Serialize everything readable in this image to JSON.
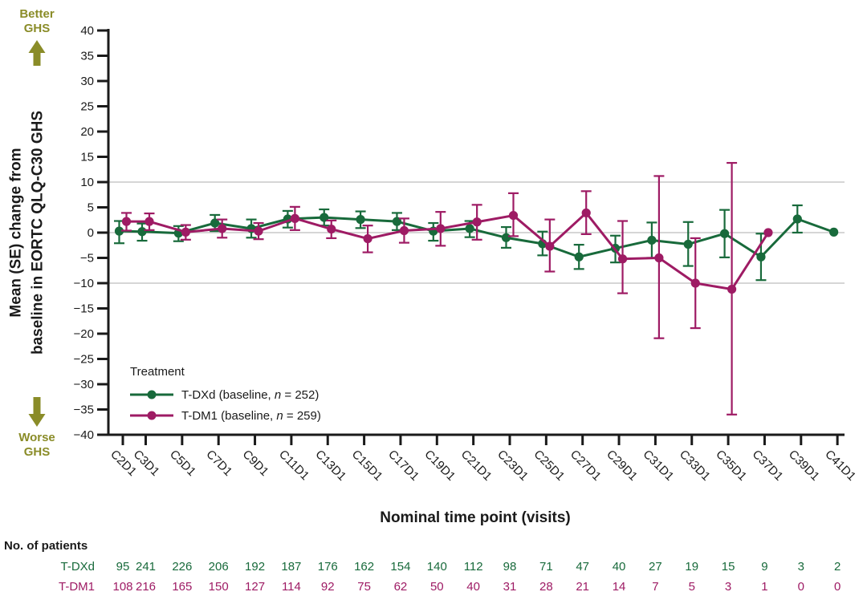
{
  "colors": {
    "tdxd": "#186a3b",
    "tdm1": "#9e1b64",
    "olive": "#8a8c28",
    "text": "#1a1a1a",
    "grid": "#c9c9c9"
  },
  "better_ghs": {
    "line1": "Better",
    "line2": "GHS"
  },
  "worse_ghs": {
    "line1": "Worse",
    "line2": "GHS"
  },
  "y_axis": {
    "title_line1": "Mean (SE) change from",
    "title_line2": "baseline in EORTC QLQ-C30 GHS"
  },
  "x_axis": {
    "title": "Nominal time point (visits)"
  },
  "legend": {
    "title": "Treatment",
    "entries": [
      {
        "prefix": "T-DXd (baseline, ",
        "n_symbol": "n",
        "suffix": " = 252)"
      },
      {
        "prefix": "T-DM1 (baseline, ",
        "n_symbol": "n",
        "suffix": " = 259)"
      }
    ]
  },
  "patients": {
    "title": "No. of patients",
    "rows": [
      {
        "label": "T-DXd",
        "values": [
          95,
          241,
          226,
          206,
          192,
          187,
          176,
          162,
          154,
          140,
          112,
          98,
          71,
          47,
          40,
          27,
          19,
          15,
          9,
          3,
          2
        ]
      },
      {
        "label": "T-DM1",
        "values": [
          108,
          216,
          165,
          150,
          127,
          114,
          92,
          75,
          62,
          50,
          40,
          31,
          28,
          21,
          14,
          7,
          5,
          3,
          1,
          0,
          0
        ]
      }
    ]
  },
  "chart_data": {
    "type": "line",
    "title": "",
    "xlabel": "Nominal time point (visits)",
    "ylabel": "Mean (SE) change from baseline in EORTC QLQ-C30 GHS",
    "error_bar_type": "SE",
    "categories": [
      "C2D1",
      "C3D1",
      "C5D1",
      "C7D1",
      "C9D1",
      "C11D1",
      "C13D1",
      "C15D1",
      "C17D1",
      "C19D1",
      "C21D1",
      "C23D1",
      "C25D1",
      "C27D1",
      "C29D1",
      "C31D1",
      "C33D1",
      "C35D1",
      "C37D1",
      "C39D1",
      "C41D1"
    ],
    "ylim": [
      -40,
      40
    ],
    "ytick_step": 5,
    "reference_lines": [
      10,
      0,
      -10
    ],
    "legend_position": "inside lower-left",
    "series": [
      {
        "name": "T-DXd (baseline, n = 252)",
        "color": "#186a3b",
        "values": [
          0.3,
          0.2,
          -0.1,
          1.9,
          0.8,
          2.7,
          3.0,
          2.6,
          2.2,
          0.3,
          0.8,
          -1.0,
          -2.2,
          -4.8,
          -3.1,
          -1.5,
          -2.3,
          -0.2,
          -4.8,
          2.7,
          0.1
        ],
        "upper": [
          2.3,
          1.8,
          1.3,
          3.5,
          2.6,
          4.3,
          4.6,
          4.2,
          3.9,
          1.9,
          2.3,
          1.1,
          0.2,
          -2.4,
          -0.6,
          2.0,
          2.1,
          4.5,
          -0.2,
          5.4,
          0.1
        ],
        "lower": [
          -2.1,
          -1.6,
          -1.7,
          0.3,
          -1.0,
          1.0,
          1.4,
          0.9,
          0.5,
          -1.6,
          -0.9,
          -3.0,
          -4.5,
          -7.2,
          -5.9,
          -5.0,
          -6.6,
          -4.9,
          -9.4,
          0.0,
          0.1
        ]
      },
      {
        "name": "T-DM1 (baseline, n = 259)",
        "color": "#9e1b64",
        "values": [
          2.2,
          2.2,
          0.1,
          0.8,
          0.3,
          2.8,
          0.7,
          -1.2,
          0.4,
          0.8,
          2.1,
          3.4,
          -2.7,
          3.9,
          -5.2,
          -5.0,
          -10.0,
          -11.2,
          0.0,
          null,
          null
        ],
        "upper": [
          3.9,
          3.8,
          1.5,
          2.6,
          1.9,
          5.1,
          2.4,
          1.4,
          2.8,
          4.1,
          5.5,
          7.8,
          2.6,
          8.2,
          2.3,
          11.2,
          -1.1,
          13.8,
          0.0,
          null,
          null
        ],
        "lower": [
          0.4,
          0.5,
          -1.4,
          -1.0,
          -1.3,
          0.5,
          -1.1,
          -3.9,
          -2.0,
          -2.6,
          -1.4,
          -0.7,
          -7.7,
          -0.3,
          -12.0,
          -20.9,
          -18.9,
          -36.0,
          0.0,
          null,
          null
        ]
      }
    ]
  }
}
